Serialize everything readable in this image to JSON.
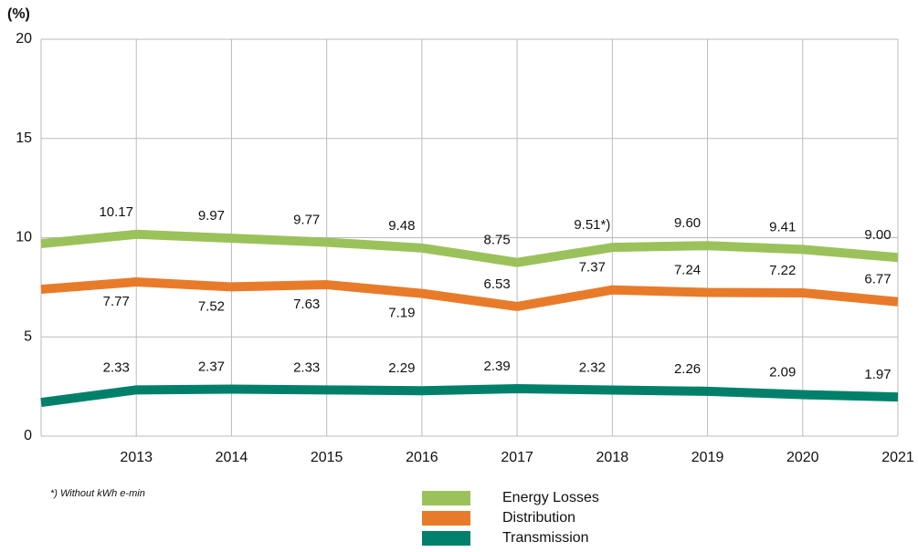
{
  "chart_data": {
    "type": "line",
    "y_unit": "(%)",
    "categories": [
      null,
      "2013",
      "2014",
      "2015",
      "2016",
      "2017",
      "2018",
      "2019",
      "2020",
      "2021"
    ],
    "series": [
      {
        "name": "Energy Losses",
        "color": "#9bc25a",
        "values": [
          9.7,
          10.17,
          9.97,
          9.77,
          9.48,
          8.75,
          9.51,
          9.6,
          9.41,
          9.0
        ],
        "value_labels": [
          null,
          "10.17",
          "9.97",
          "9.77",
          "9.48",
          "8.75",
          "9.51*)",
          "9.60",
          "9.41",
          "9.00"
        ]
      },
      {
        "name": "Distribution",
        "color": "#e87b2a",
        "values": [
          7.4,
          7.77,
          7.52,
          7.63,
          7.19,
          6.53,
          7.37,
          7.24,
          7.22,
          6.77
        ],
        "value_labels": [
          null,
          "7.77",
          "7.52",
          "7.63",
          "7.19",
          "6.53",
          "7.37",
          "7.24",
          "7.22",
          "6.77"
        ]
      },
      {
        "name": "Transmission",
        "color": "#00806a",
        "values": [
          1.7,
          2.33,
          2.37,
          2.33,
          2.29,
          2.39,
          2.32,
          2.26,
          2.09,
          1.97
        ],
        "value_labels": [
          null,
          "2.33",
          "2.37",
          "2.33",
          "2.29",
          "2.39",
          "2.32",
          "2.26",
          "2.09",
          "1.97"
        ]
      }
    ],
    "ylim": [
      0,
      20
    ],
    "yticks": [
      0,
      5,
      10,
      15,
      20
    ],
    "grid": true,
    "footnote": "*) Without kWh e-min"
  }
}
